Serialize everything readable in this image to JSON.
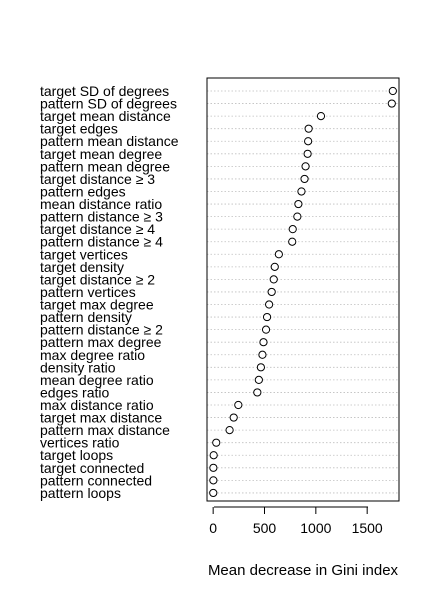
{
  "chart_data": {
    "type": "scatter",
    "variant": "dotchart",
    "xlabel": "Mean decrease in Gini index",
    "xlim": [
      -60,
      1810
    ],
    "x_ticks": [
      0,
      500,
      1000,
      1500
    ],
    "x_tick_labels": [
      "0",
      "500",
      "1000",
      "1500"
    ],
    "grid": "horizontal dotted",
    "categories": [
      "target SD of degrees",
      "pattern SD of degrees",
      "target mean distance",
      "target edges",
      "pattern mean distance",
      "target mean degree",
      "pattern mean degree",
      "target distance ≥ 3",
      "pattern edges",
      "mean distance ratio",
      "pattern distance ≥ 3",
      "target distance ≥ 4",
      "pattern distance ≥ 4",
      "target vertices",
      "target density",
      "target distance ≥ 2",
      "pattern vertices",
      "target max degree",
      "pattern density",
      "pattern distance ≥ 2",
      "pattern max degree",
      "max degree ratio",
      "density ratio",
      "mean degree ratio",
      "edges ratio",
      "max distance ratio",
      "target max distance",
      "pattern max distance",
      "vertices ratio",
      "target loops",
      "target connected",
      "pattern connected",
      "pattern loops"
    ],
    "values": [
      1750,
      1740,
      1050,
      930,
      925,
      920,
      900,
      890,
      860,
      830,
      820,
      775,
      770,
      640,
      600,
      590,
      570,
      545,
      525,
      515,
      490,
      480,
      465,
      445,
      430,
      245,
      200,
      160,
      30,
      5,
      2,
      2,
      1
    ]
  }
}
